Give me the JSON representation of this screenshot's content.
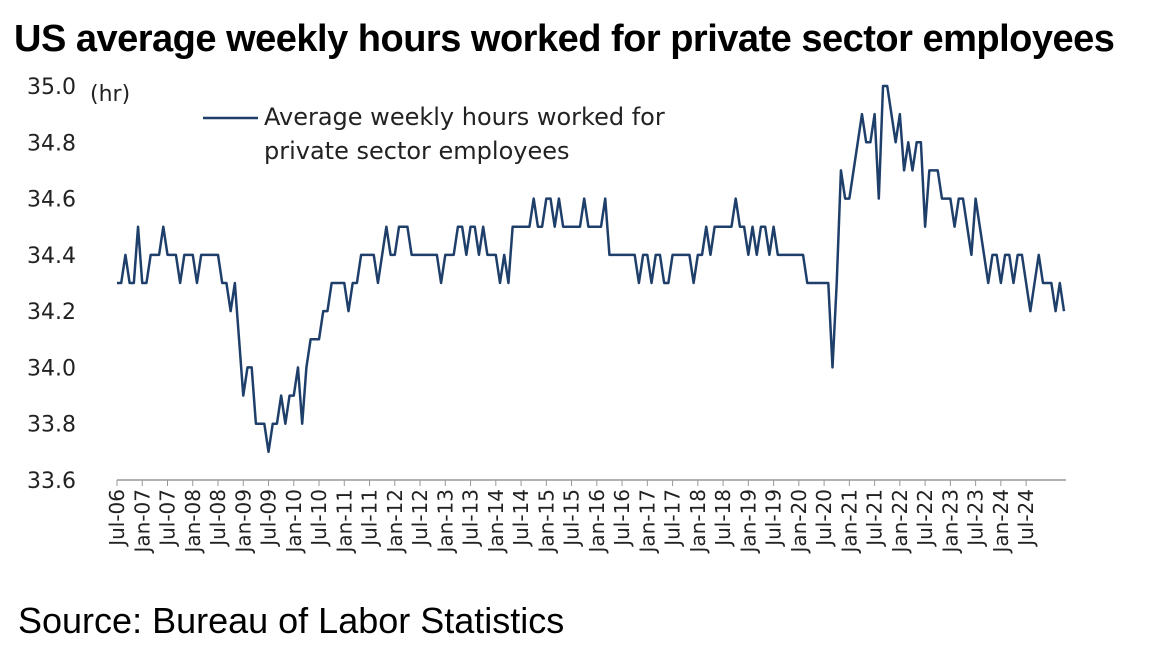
{
  "title": "US average weekly hours worked for private sector employees",
  "source": "Source: Bureau of Labor Statistics",
  "chart_data": {
    "type": "line",
    "title": "US average weekly hours worked for private sector employees",
    "ylabel": "(hr)",
    "xlabel": "",
    "ylim": [
      33.6,
      35.0
    ],
    "yticks": [
      "35.0",
      "34.8",
      "34.6",
      "34.4",
      "34.2",
      "34.0",
      "33.8",
      "33.6"
    ],
    "xticks": [
      "Jul-06",
      "Jan-07",
      "Jul-07",
      "Jan-08",
      "Jul-08",
      "Jan-09",
      "Jul-09",
      "Jan-10",
      "Jul-10",
      "Jan-11",
      "Jul-11",
      "Jan-12",
      "Jul-12",
      "Jan-13",
      "Jul-13",
      "Jan-14",
      "Jul-14",
      "Jan-15",
      "Jul-15",
      "Jan-16",
      "Jul-16",
      "Jan-17",
      "Jul-17",
      "Jan-18",
      "Jul-18",
      "Jan-19",
      "Jul-19",
      "Jan-20",
      "Jul-20",
      "Jan-21",
      "Jul-21",
      "Jan-22",
      "Jul-22",
      "Jan-23",
      "Jul-23",
      "Jan-24",
      "Jul-24"
    ],
    "x_start": "Jul-06",
    "x_end": "Aug-24",
    "legend": "top-left",
    "grid": false,
    "color": "#1f3f6b",
    "series": [
      {
        "name": "Average weekly hours worked for private sector employees",
        "values": [
          34.3,
          34.3,
          34.4,
          34.3,
          34.3,
          34.5,
          34.3,
          34.3,
          34.4,
          34.4,
          34.4,
          34.5,
          34.4,
          34.4,
          34.4,
          34.3,
          34.4,
          34.4,
          34.4,
          34.3,
          34.4,
          34.4,
          34.4,
          34.4,
          34.4,
          34.3,
          34.3,
          34.2,
          34.3,
          34.1,
          33.9,
          34.0,
          34.0,
          33.8,
          33.8,
          33.8,
          33.7,
          33.8,
          33.8,
          33.9,
          33.8,
          33.9,
          33.9,
          34.0,
          33.8,
          34.0,
          34.1,
          34.1,
          34.1,
          34.2,
          34.2,
          34.3,
          34.3,
          34.3,
          34.3,
          34.2,
          34.3,
          34.3,
          34.4,
          34.4,
          34.4,
          34.4,
          34.3,
          34.4,
          34.5,
          34.4,
          34.4,
          34.5,
          34.5,
          34.5,
          34.4,
          34.4,
          34.4,
          34.4,
          34.4,
          34.4,
          34.4,
          34.3,
          34.4,
          34.4,
          34.4,
          34.5,
          34.5,
          34.4,
          34.5,
          34.5,
          34.4,
          34.5,
          34.4,
          34.4,
          34.4,
          34.3,
          34.4,
          34.3,
          34.5,
          34.5,
          34.5,
          34.5,
          34.5,
          34.6,
          34.5,
          34.5,
          34.6,
          34.6,
          34.5,
          34.6,
          34.5,
          34.5,
          34.5,
          34.5,
          34.5,
          34.6,
          34.5,
          34.5,
          34.5,
          34.5,
          34.6,
          34.4,
          34.4,
          34.4,
          34.4,
          34.4,
          34.4,
          34.4,
          34.3,
          34.4,
          34.4,
          34.3,
          34.4,
          34.4,
          34.3,
          34.3,
          34.4,
          34.4,
          34.4,
          34.4,
          34.4,
          34.3,
          34.4,
          34.4,
          34.5,
          34.4,
          34.5,
          34.5,
          34.5,
          34.5,
          34.5,
          34.6,
          34.5,
          34.5,
          34.4,
          34.5,
          34.4,
          34.5,
          34.5,
          34.4,
          34.5,
          34.4,
          34.4,
          34.4,
          34.4,
          34.4,
          34.4,
          34.4,
          34.3,
          34.3,
          34.3,
          34.3,
          34.3,
          34.3,
          34.0,
          34.3,
          34.7,
          34.6,
          34.6,
          34.7,
          34.8,
          34.9,
          34.8,
          34.8,
          34.9,
          34.6,
          35.0,
          35.0,
          34.9,
          34.8,
          34.9,
          34.7,
          34.8,
          34.7,
          34.8,
          34.8,
          34.5,
          34.7,
          34.7,
          34.7,
          34.6,
          34.6,
          34.6,
          34.5,
          34.6,
          34.6,
          34.5,
          34.4,
          34.6,
          34.5,
          34.4,
          34.3,
          34.4,
          34.4,
          34.3,
          34.4,
          34.4,
          34.3,
          34.4,
          34.4,
          34.3,
          34.2,
          34.3,
          34.4,
          34.3,
          34.3,
          34.3,
          34.2,
          34.3,
          34.2
        ]
      }
    ]
  }
}
